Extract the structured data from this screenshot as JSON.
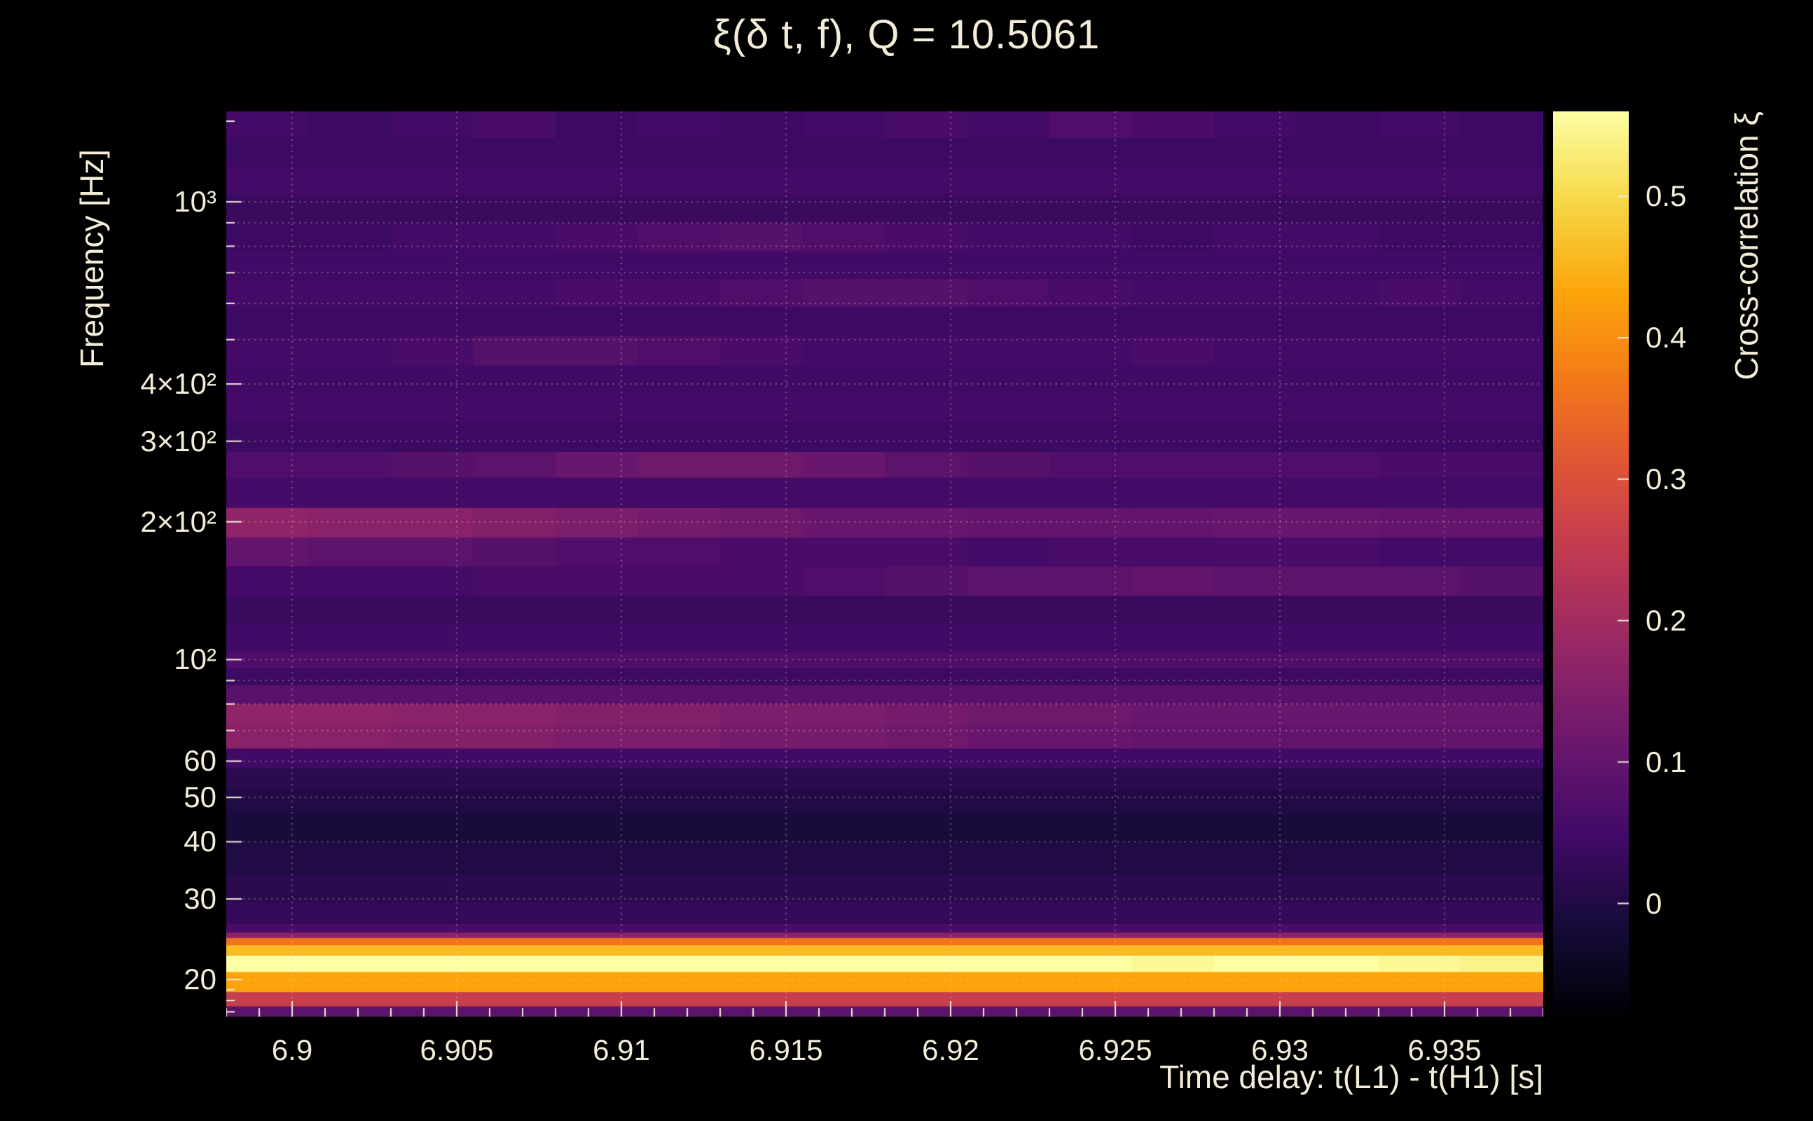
{
  "style": {
    "background": "#000000",
    "text_color": "#f2ecd8",
    "grid_color": "rgba(238,228,195,0.45)",
    "tick_color": "#f2ecd8"
  },
  "chart_data": {
    "type": "heatmap",
    "title": "ξ(δ t, f), Q = 10.5061",
    "xlabel": "Time delay: t(L1) - t(H1) [s]",
    "ylabel": "Frequency [Hz]",
    "colorbar_label": "Cross-correlation ξ",
    "x_range": [
      6.898,
      6.938
    ],
    "y_range": [
      16.6,
      1576
    ],
    "y_scale": "log",
    "z_range": [
      -0.08,
      0.56
    ],
    "x_bins": 16,
    "x_ticks": {
      "values": [
        6.9,
        6.905,
        6.91,
        6.915,
        6.92,
        6.925,
        6.93,
        6.935
      ],
      "labels": [
        "6.9",
        "6.905",
        "6.91",
        "6.915",
        "6.92",
        "6.925",
        "6.93",
        "6.935"
      ],
      "minor_step": 0.001
    },
    "y_ticks": {
      "values": [
        20,
        30,
        40,
        50,
        60,
        100,
        200,
        300,
        400,
        1000
      ],
      "labels": [
        "20",
        "30",
        "40",
        "50",
        "60",
        "10²",
        "2×10²",
        "3×10²",
        "4×10²",
        "10³"
      ],
      "minor": [
        17,
        18,
        19,
        70,
        80,
        90,
        500,
        600,
        700,
        800,
        900,
        1500
      ]
    },
    "colorbar_ticks": {
      "values": [
        0,
        0.1,
        0.2,
        0.3,
        0.4,
        0.5
      ],
      "labels": [
        "0",
        "0.1",
        "0.2",
        "0.3",
        "0.4",
        "0.5"
      ]
    },
    "grid_x": [
      6.9,
      6.905,
      6.91,
      6.915,
      6.92,
      6.925,
      6.93,
      6.935
    ],
    "grid_y": [
      20,
      30,
      40,
      50,
      60,
      70,
      80,
      90,
      100,
      200,
      300,
      400,
      500,
      600,
      700,
      800,
      900,
      1000
    ],
    "colormap": {
      "name": "inferno",
      "stops": [
        {
          "t": 0.0,
          "c": "#000004"
        },
        {
          "t": 0.1,
          "c": "#160b39"
        },
        {
          "t": 0.2,
          "c": "#420a68"
        },
        {
          "t": 0.3,
          "c": "#6a176e"
        },
        {
          "t": 0.4,
          "c": "#932667"
        },
        {
          "t": 0.5,
          "c": "#bc3754"
        },
        {
          "t": 0.6,
          "c": "#dd513a"
        },
        {
          "t": 0.7,
          "c": "#f37819"
        },
        {
          "t": 0.8,
          "c": "#fca50a"
        },
        {
          "t": 0.9,
          "c": "#f6d746"
        },
        {
          "t": 1.0,
          "c": "#fcffa4"
        }
      ]
    },
    "bands": [
      {
        "f0": 16.6,
        "f1": 17.5,
        "v": 0.09
      },
      {
        "f0": 17.5,
        "f1": 18.8,
        "v": 0.26
      },
      {
        "f0": 18.8,
        "f1": 20.8,
        "v": 0.43
      },
      {
        "f0": 20.8,
        "f1": 22.6,
        "vals": [
          0.57,
          0.58,
          0.57,
          0.57,
          0.58,
          0.57,
          0.57,
          0.56,
          0.57,
          0.56,
          0.56,
          0.55,
          0.56,
          0.57,
          0.55,
          0.54
        ]
      },
      {
        "f0": 22.6,
        "f1": 23.8,
        "v": 0.46
      },
      {
        "f0": 23.8,
        "f1": 24.7,
        "v": 0.36
      },
      {
        "f0": 24.7,
        "f1": 25.4,
        "v": 0.16
      },
      {
        "f0": 25.4,
        "f1": 26.5,
        "v": 0.06
      },
      {
        "f0": 26.5,
        "f1": 29.5,
        "v": 0.03
      },
      {
        "f0": 29.5,
        "f1": 34,
        "v": 0.015
      },
      {
        "f0": 34,
        "f1": 40,
        "v": 0.0
      },
      {
        "f0": 40,
        "f1": 46,
        "v": -0.01
      },
      {
        "f0": 46,
        "f1": 52,
        "v": 0.0
      },
      {
        "f0": 52,
        "f1": 58,
        "v": 0.015
      },
      {
        "f0": 58,
        "f1": 64,
        "v": 0.045
      },
      {
        "f0": 64,
        "f1": 72,
        "vals": [
          0.16,
          0.16,
          0.15,
          0.15,
          0.14,
          0.14,
          0.13,
          0.13,
          0.12,
          0.11,
          0.11,
          0.1,
          0.1,
          0.1,
          0.1,
          0.1
        ]
      },
      {
        "f0": 72,
        "f1": 80,
        "vals": [
          0.17,
          0.17,
          0.16,
          0.16,
          0.15,
          0.15,
          0.14,
          0.14,
          0.13,
          0.12,
          0.12,
          0.11,
          0.11,
          0.11,
          0.11,
          0.11
        ]
      },
      {
        "f0": 80,
        "f1": 88,
        "v": 0.085
      },
      {
        "f0": 88,
        "f1": 96,
        "v": 0.04
      },
      {
        "f0": 96,
        "f1": 104,
        "v": 0.07
      },
      {
        "f0": 104,
        "f1": 120,
        "v": 0.045
      },
      {
        "f0": 120,
        "f1": 138,
        "v": 0.035
      },
      {
        "f0": 138,
        "f1": 160,
        "vals": [
          0.05,
          0.05,
          0.05,
          0.06,
          0.06,
          0.06,
          0.06,
          0.07,
          0.08,
          0.09,
          0.09,
          0.1,
          0.09,
          0.09,
          0.09,
          0.08
        ]
      },
      {
        "f0": 160,
        "f1": 185,
        "vals": [
          0.1,
          0.09,
          0.09,
          0.08,
          0.07,
          0.07,
          0.06,
          0.06,
          0.06,
          0.05,
          0.06,
          0.06,
          0.06,
          0.06,
          0.05,
          0.05
        ]
      },
      {
        "f0": 185,
        "f1": 215,
        "vals": [
          0.17,
          0.16,
          0.16,
          0.15,
          0.14,
          0.13,
          0.12,
          0.11,
          0.11,
          0.1,
          0.1,
          0.1,
          0.11,
          0.11,
          0.1,
          0.1
        ]
      },
      {
        "f0": 215,
        "f1": 250,
        "v": 0.05
      },
      {
        "f0": 250,
        "f1": 285,
        "vals": [
          0.07,
          0.07,
          0.08,
          0.09,
          0.11,
          0.12,
          0.12,
          0.11,
          0.09,
          0.08,
          0.07,
          0.07,
          0.07,
          0.07,
          0.06,
          0.06
        ]
      },
      {
        "f0": 285,
        "f1": 330,
        "v": 0.04
      },
      {
        "f0": 330,
        "f1": 385,
        "v": 0.05
      },
      {
        "f0": 385,
        "f1": 440,
        "v": 0.045
      },
      {
        "f0": 440,
        "f1": 510,
        "vals": [
          0.05,
          0.05,
          0.06,
          0.08,
          0.08,
          0.07,
          0.06,
          0.05,
          0.05,
          0.05,
          0.05,
          0.06,
          0.05,
          0.05,
          0.05,
          0.05
        ]
      },
      {
        "f0": 510,
        "f1": 590,
        "v": 0.04
      },
      {
        "f0": 590,
        "f1": 680,
        "vals": [
          0.05,
          0.05,
          0.05,
          0.05,
          0.06,
          0.06,
          0.07,
          0.08,
          0.08,
          0.07,
          0.06,
          0.05,
          0.05,
          0.05,
          0.06,
          0.05
        ]
      },
      {
        "f0": 680,
        "f1": 780,
        "v": 0.045
      },
      {
        "f0": 780,
        "f1": 900,
        "vals": [
          0.04,
          0.04,
          0.05,
          0.05,
          0.06,
          0.07,
          0.08,
          0.07,
          0.06,
          0.05,
          0.05,
          0.04,
          0.05,
          0.05,
          0.04,
          0.04
        ]
      },
      {
        "f0": 900,
        "f1": 1040,
        "v": 0.035
      },
      {
        "f0": 1040,
        "f1": 1200,
        "v": 0.05
      },
      {
        "f0": 1200,
        "f1": 1380,
        "v": 0.04
      },
      {
        "f0": 1380,
        "f1": 1576,
        "vals": [
          0.05,
          0.04,
          0.05,
          0.06,
          0.04,
          0.05,
          0.04,
          0.05,
          0.06,
          0.05,
          0.07,
          0.06,
          0.05,
          0.04,
          0.05,
          0.04
        ]
      }
    ]
  }
}
